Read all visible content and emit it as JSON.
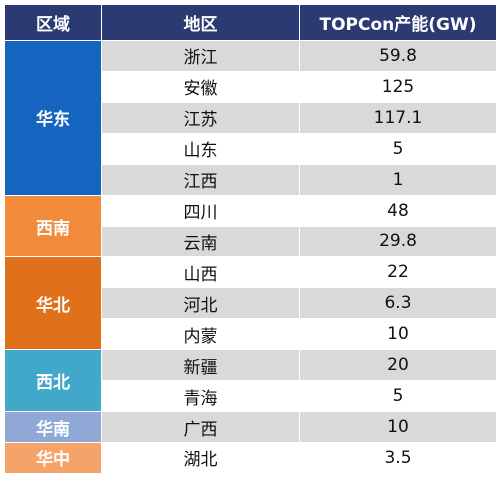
{
  "headers": [
    "区域",
    "地区",
    "TOPCon产能(GW)"
  ],
  "groups": [
    {
      "region": "华东",
      "color": "#1565c0",
      "rows": [
        [
          "浙江",
          "59.8"
        ],
        [
          "安徽",
          "125"
        ],
        [
          "江苏",
          "117.1"
        ],
        [
          "山东",
          "5"
        ],
        [
          "江西",
          "1"
        ]
      ]
    },
    {
      "region": "西南",
      "color": "#f28a3c",
      "rows": [
        [
          "四川",
          "48"
        ],
        [
          "云南",
          "29.8"
        ]
      ]
    },
    {
      "region": "华北",
      "color": "#e0701a",
      "rows": [
        [
          "山西",
          "22"
        ],
        [
          "河北",
          "6.3"
        ],
        [
          "内蒙",
          "10"
        ]
      ]
    },
    {
      "region": "西北",
      "color": "#41a8c9",
      "rows": [
        [
          "新疆",
          "20"
        ],
        [
          "青海",
          "5"
        ]
      ]
    },
    {
      "region": "华南",
      "color": "#8fa8d6",
      "rows": [
        [
          "广西",
          "10"
        ]
      ]
    },
    {
      "region": "华中",
      "color": "#f6a36a",
      "rows": [
        [
          "湖北",
          "3.5"
        ]
      ]
    }
  ]
}
